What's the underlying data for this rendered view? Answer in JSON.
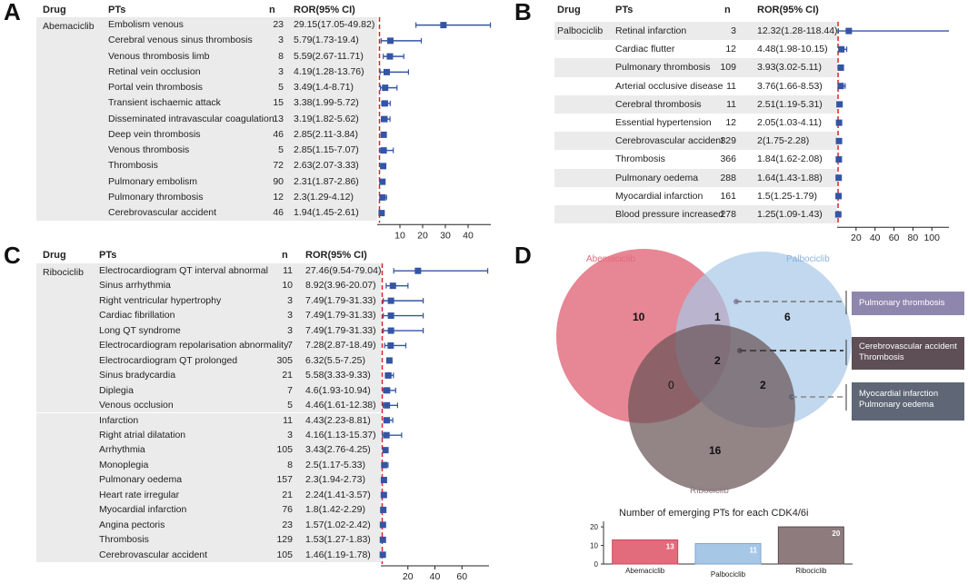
{
  "panels": {
    "A": {
      "letter": "A",
      "header": {
        "drug": "Drug",
        "pts": "PTs",
        "n": "n",
        "ror": "ROR(95% CI)"
      }
    },
    "B": {
      "letter": "B",
      "header": {
        "drug": "Drug",
        "pts": "PTs",
        "n": "n",
        "ror": "ROR(95% CI)"
      }
    },
    "C": {
      "letter": "C",
      "header": {
        "drug": "Drug",
        "pts": "PTs",
        "n": "n",
        "ror": "ROR(95% CI)"
      }
    },
    "D": {
      "letter": "D"
    }
  },
  "chart_data": [
    {
      "type": "forest",
      "panel": "A",
      "drug": "Abemaciclib",
      "xlim": [
        0,
        50
      ],
      "xticks": [
        10,
        20,
        30,
        40
      ],
      "reference_line": 1,
      "rows": [
        {
          "pt": "Embolism venous",
          "n": "23",
          "ror_text": "29.15(17.05-49.82)",
          "ror": 29.15,
          "lo": 17.05,
          "hi": 49.82
        },
        {
          "pt": "Cerebral venous sinus thrombosis",
          "n": "3",
          "ror_text": "5.79(1.73-19.4)",
          "ror": 5.79,
          "lo": 1.73,
          "hi": 19.4
        },
        {
          "pt": "Venous thrombosis limb",
          "n": "8",
          "ror_text": "5.59(2.67-11.71)",
          "ror": 5.59,
          "lo": 2.67,
          "hi": 11.71
        },
        {
          "pt": "Retinal vein occlusion",
          "n": "3",
          "ror_text": "4.19(1.28-13.76)",
          "ror": 4.19,
          "lo": 1.28,
          "hi": 13.76
        },
        {
          "pt": "Portal vein thrombosis",
          "n": "5",
          "ror_text": "3.49(1.4-8.71)",
          "ror": 3.49,
          "lo": 1.4,
          "hi": 8.71
        },
        {
          "pt": "Transient ischaemic attack",
          "n": "15",
          "ror_text": "3.38(1.99-5.72)",
          "ror": 3.38,
          "lo": 1.99,
          "hi": 5.72
        },
        {
          "pt": "Disseminated intravascular coagulation",
          "n": "13",
          "ror_text": "3.19(1.82-5.62)",
          "ror": 3.19,
          "lo": 1.82,
          "hi": 5.62
        },
        {
          "pt": "Deep vein thrombosis",
          "n": "46",
          "ror_text": "2.85(2.11-3.84)",
          "ror": 2.85,
          "lo": 2.11,
          "hi": 3.84
        },
        {
          "pt": "Venous thrombosis",
          "n": "5",
          "ror_text": "2.85(1.15-7.07)",
          "ror": 2.85,
          "lo": 1.15,
          "hi": 7.07
        },
        {
          "pt": "Thrombosis",
          "n": "72",
          "ror_text": "2.63(2.07-3.33)",
          "ror": 2.63,
          "lo": 2.07,
          "hi": 3.33
        },
        {
          "pt": "Pulmonary embolism",
          "n": "90",
          "ror_text": "2.31(1.87-2.86)",
          "ror": 2.31,
          "lo": 1.87,
          "hi": 2.86
        },
        {
          "pt": "Pulmonary thrombosis",
          "n": "12",
          "ror_text": "2.3(1.29-4.12)",
          "ror": 2.3,
          "lo": 1.29,
          "hi": 4.12
        },
        {
          "pt": "Cerebrovascular accident",
          "n": "46",
          "ror_text": "1.94(1.45-2.61)",
          "ror": 1.94,
          "lo": 1.45,
          "hi": 2.61
        }
      ]
    },
    {
      "type": "forest",
      "panel": "B",
      "drug": "Palbociclib",
      "xlim": [
        0,
        118
      ],
      "xticks": [
        20,
        40,
        60,
        80,
        100
      ],
      "reference_line": 1,
      "rows": [
        {
          "pt": "Retinal infarction",
          "n": "3",
          "ror_text": "12.32(1.28-118.44)",
          "ror": 12.32,
          "lo": 1.28,
          "hi": 118.44
        },
        {
          "pt": "Cardiac flutter",
          "n": "12",
          "ror_text": "4.48(1.98-10.15)",
          "ror": 4.48,
          "lo": 1.98,
          "hi": 10.15
        },
        {
          "pt": "Pulmonary thrombosis",
          "n": "109",
          "ror_text": "3.93(3.02-5.11)",
          "ror": 3.93,
          "lo": 3.02,
          "hi": 5.11
        },
        {
          "pt": "Arterial occlusive disease",
          "n": "11",
          "ror_text": "3.76(1.66-8.53)",
          "ror": 3.76,
          "lo": 1.66,
          "hi": 8.53
        },
        {
          "pt": "Cerebral thrombosis",
          "n": "11",
          "ror_text": "2.51(1.19-5.31)",
          "ror": 2.51,
          "lo": 1.19,
          "hi": 5.31
        },
        {
          "pt": "Essential hypertension",
          "n": "12",
          "ror_text": "2.05(1.03-4.11)",
          "ror": 2.05,
          "lo": 1.03,
          "hi": 4.11
        },
        {
          "pt": "Cerebrovascular accident",
          "n": "329",
          "ror_text": "2(1.75-2.28)",
          "ror": 2.0,
          "lo": 1.75,
          "hi": 2.28
        },
        {
          "pt": "Thrombosis",
          "n": "366",
          "ror_text": "1.84(1.62-2.08)",
          "ror": 1.84,
          "lo": 1.62,
          "hi": 2.08
        },
        {
          "pt": "Pulmonary oedema",
          "n": "288",
          "ror_text": "1.64(1.43-1.88)",
          "ror": 1.64,
          "lo": 1.43,
          "hi": 1.88
        },
        {
          "pt": "Myocardial infarction",
          "n": "161",
          "ror_text": "1.5(1.25-1.79)",
          "ror": 1.5,
          "lo": 1.25,
          "hi": 1.79
        },
        {
          "pt": "Blood pressure increased",
          "n": "278",
          "ror_text": "1.25(1.09-1.43)",
          "ror": 1.25,
          "lo": 1.09,
          "hi": 1.43
        }
      ]
    },
    {
      "type": "forest",
      "panel": "C",
      "drug": "Ribociclib",
      "xlim": [
        0,
        80
      ],
      "xticks": [
        20,
        40,
        60
      ],
      "reference_line": 1,
      "rows": [
        {
          "pt": "Electrocardiogram QT interval abnormal",
          "n": "11",
          "ror_text": "27.46(9.54-79.04)",
          "ror": 27.46,
          "lo": 9.54,
          "hi": 79.04
        },
        {
          "pt": "Sinus arrhythmia",
          "n": "10",
          "ror_text": "8.92(3.96-20.07)",
          "ror": 8.92,
          "lo": 3.96,
          "hi": 20.07
        },
        {
          "pt": "Right ventricular hypertrophy",
          "n": "3",
          "ror_text": "7.49(1.79-31.33)",
          "ror": 7.49,
          "lo": 1.79,
          "hi": 31.33
        },
        {
          "pt": "Cardiac fibrillation",
          "n": "3",
          "ror_text": "7.49(1.79-31.33)",
          "ror": 7.49,
          "lo": 1.79,
          "hi": 31.33
        },
        {
          "pt": "Long QT syndrome",
          "n": "3",
          "ror_text": "7.49(1.79-31.33)",
          "ror": 7.49,
          "lo": 1.79,
          "hi": 31.33
        },
        {
          "pt": "Electrocardiogram repolarisation abnormality",
          "n": "7",
          "ror_text": "7.28(2.87-18.49)",
          "ror": 7.28,
          "lo": 2.87,
          "hi": 18.49
        },
        {
          "pt": "Electrocardiogram QT prolonged",
          "n": "305",
          "ror_text": "6.32(5.5-7.25)",
          "ror": 6.32,
          "lo": 5.5,
          "hi": 7.25
        },
        {
          "pt": "Sinus bradycardia",
          "n": "21",
          "ror_text": "5.58(3.33-9.33)",
          "ror": 5.58,
          "lo": 3.33,
          "hi": 9.33
        },
        {
          "pt": "Diplegia",
          "n": "7",
          "ror_text": "4.6(1.93-10.94)",
          "ror": 4.6,
          "lo": 1.93,
          "hi": 10.94
        },
        {
          "pt": "Venous occlusion",
          "n": "5",
          "ror_text": "4.46(1.61-12.38)",
          "ror": 4.46,
          "lo": 1.61,
          "hi": 12.38
        },
        {
          "pt": "Infarction",
          "n": "11",
          "ror_text": "4.43(2.23-8.81)",
          "ror": 4.43,
          "lo": 2.23,
          "hi": 8.81
        },
        {
          "pt": "Right atrial dilatation",
          "n": "3",
          "ror_text": "4.16(1.13-15.37)",
          "ror": 4.16,
          "lo": 1.13,
          "hi": 15.37
        },
        {
          "pt": "Arrhythmia",
          "n": "105",
          "ror_text": "3.43(2.76-4.25)",
          "ror": 3.43,
          "lo": 2.76,
          "hi": 4.25
        },
        {
          "pt": "Monoplegia",
          "n": "8",
          "ror_text": "2.5(1.17-5.33)",
          "ror": 2.5,
          "lo": 1.17,
          "hi": 5.33
        },
        {
          "pt": "Pulmonary oedema",
          "n": "157",
          "ror_text": "2.3(1.94-2.73)",
          "ror": 2.3,
          "lo": 1.94,
          "hi": 2.73
        },
        {
          "pt": "Heart rate irregular",
          "n": "21",
          "ror_text": "2.24(1.41-3.57)",
          "ror": 2.24,
          "lo": 1.41,
          "hi": 3.57
        },
        {
          "pt": "Myocardial infarction",
          "n": "76",
          "ror_text": "1.8(1.42-2.29)",
          "ror": 1.8,
          "lo": 1.42,
          "hi": 2.29
        },
        {
          "pt": "Angina pectoris",
          "n": "23",
          "ror_text": "1.57(1.02-2.42)",
          "ror": 1.57,
          "lo": 1.02,
          "hi": 2.42
        },
        {
          "pt": "Thrombosis",
          "n": "129",
          "ror_text": "1.53(1.27-1.83)",
          "ror": 1.53,
          "lo": 1.27,
          "hi": 1.83
        },
        {
          "pt": "Cerebrovascular accident",
          "n": "105",
          "ror_text": "1.46(1.19-1.78)",
          "ror": 1.46,
          "lo": 1.19,
          "hi": 1.78
        }
      ]
    },
    {
      "type": "venn",
      "panel": "D",
      "sets": [
        "Abemaciclib",
        "Palbociclib",
        "Ribociclib"
      ],
      "regions": {
        "abemaciclib_only": 10,
        "palbociclib_only": 6,
        "ribociclib_only": 16,
        "abemaciclib_palbociclib": 1,
        "abemaciclib_ribociclib": 0,
        "palbociclib_ribociclib": 2,
        "all_three": 2
      },
      "callouts": [
        {
          "lines": [
            "Pulmonary thrombosis"
          ],
          "color": "#8e86ad"
        },
        {
          "lines": [
            "Cerebrovascular accident",
            "Thrombosis"
          ],
          "color": "#5e4e55"
        },
        {
          "lines": [
            "Myocardial infarction",
            "Pulmonary oedema"
          ],
          "color": "#5f6676"
        }
      ],
      "colors": {
        "Abemaciclib": "#e26b7c",
        "Palbociclib": "#a7c7e7",
        "Ribociclib": "#8d7b7d"
      }
    },
    {
      "type": "bar",
      "panel": "D",
      "title": "Number of emerging PTs for each CDK4/6i",
      "categories": [
        "Abemaciclib",
        "Palbociclib",
        "Ribociclib"
      ],
      "values": [
        13,
        11,
        20
      ],
      "ylim": [
        0,
        22
      ],
      "yticks": [
        0,
        10,
        20
      ],
      "colors": [
        "#e26b7c",
        "#a7c7e7",
        "#8d7b7d"
      ]
    }
  ]
}
